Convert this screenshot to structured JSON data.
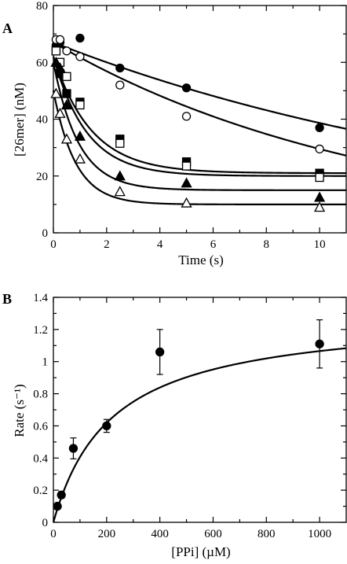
{
  "chart_data": [
    {
      "panel": "A",
      "type": "scatter",
      "xlabel": "Time (s)",
      "ylabel": "[26mer] (nM)",
      "xlim": [
        0,
        11
      ],
      "ylim": [
        0,
        80
      ],
      "xticks": [
        0,
        2,
        4,
        6,
        8,
        10
      ],
      "yticks": [
        0,
        20,
        40,
        60,
        80
      ],
      "series": [
        {
          "marker": "filled-circle",
          "x": [
            0.1,
            0.25,
            1,
            2.5,
            5,
            10
          ],
          "y": [
            66,
            67,
            68.5,
            58,
            51,
            37
          ],
          "fit": {
            "A0": 67,
            "k": 0.055
          }
        },
        {
          "marker": "open-circle",
          "x": [
            0.1,
            0.25,
            0.5,
            1,
            2.5,
            5,
            10
          ],
          "y": [
            68,
            68,
            64,
            62,
            52,
            41,
            29.5
          ],
          "fit": {
            "A0": 67,
            "k": 0.082
          }
        },
        {
          "marker": "filled-square",
          "x": [
            0.1,
            0.25,
            0.5,
            1,
            2.5,
            5,
            10
          ],
          "y": [
            64,
            56,
            49,
            46,
            33,
            25,
            21
          ],
          "fit": {
            "A0": 62,
            "k": 0.7,
            "c": 21
          }
        },
        {
          "marker": "open-square",
          "x": [
            0.1,
            0.25,
            0.5,
            1,
            2.5,
            5,
            10
          ],
          "y": [
            64,
            60,
            55,
            45,
            31.5,
            23.5,
            19.5
          ],
          "fit": {
            "A0": 62,
            "k": 0.8,
            "c": 20
          }
        },
        {
          "marker": "filled-triangle",
          "x": [
            0.1,
            0.25,
            0.5,
            1,
            2.5,
            5,
            10
          ],
          "y": [
            60,
            58,
            45,
            34,
            20,
            17.5,
            12.5
          ],
          "fit": {
            "A0": 60,
            "k": 1.05,
            "c": 15
          }
        },
        {
          "marker": "open-triangle",
          "x": [
            0.1,
            0.25,
            0.5,
            1,
            2.5,
            5,
            10
          ],
          "y": [
            49,
            42,
            33,
            26,
            14.5,
            10.5,
            9
          ],
          "fit": {
            "A0": 50,
            "k": 1.2,
            "c": 10
          }
        }
      ]
    },
    {
      "panel": "B",
      "type": "scatter",
      "xlabel": "[PPi] (µM)",
      "ylabel": "Rate (s⁻¹)",
      "xlim": [
        0,
        1100
      ],
      "ylim": [
        0,
        1.4
      ],
      "xticks": [
        0,
        200,
        400,
        600,
        800,
        1000
      ],
      "yticks": [
        0,
        0.2,
        0.4,
        0.6,
        0.8,
        1,
        1.2,
        1.4
      ],
      "series": [
        {
          "marker": "filled-circle",
          "x": [
            15,
            30,
            75,
            200,
            400,
            1000
          ],
          "y": [
            0.1,
            0.17,
            0.46,
            0.6,
            1.06,
            1.11
          ],
          "err": [
            0,
            0.02,
            0.065,
            0.04,
            0.14,
            0.15
          ],
          "fit": {
            "Vmax": 1.3,
            "K": 220
          }
        }
      ]
    }
  ]
}
